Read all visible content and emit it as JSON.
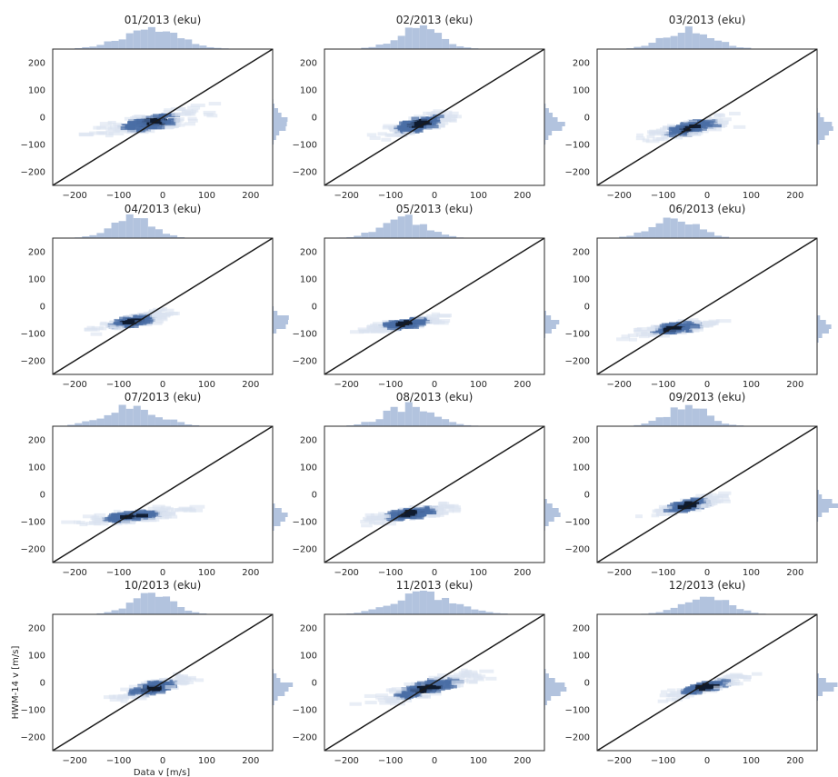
{
  "figure": {
    "xlabel": "Data v [m/s]",
    "ylabel": "HWM-14 v [m/s]"
  },
  "colors": {
    "hist": "#b2c3de",
    "dark": "#0f1a2e",
    "mid": "#4a6da5",
    "light": "#dbe3f0",
    "line": "#1a1a1a"
  },
  "chart_data": [
    {
      "type": "heatmap",
      "title": "01/2013 (eku)",
      "xlim": [
        -250,
        250
      ],
      "ylim": [
        -250,
        250
      ],
      "x_ticks": [
        -200,
        -100,
        0,
        100,
        200
      ],
      "y_ticks": [
        -200,
        -100,
        0,
        100,
        200
      ],
      "reference_line": "y = x",
      "density_center": [
        -30,
        -20
      ],
      "spread_x": 70,
      "spread_y": 30,
      "slope": 0.6
    },
    {
      "type": "heatmap",
      "title": "02/2013 (eku)",
      "xlim": [
        -250,
        250
      ],
      "ylim": [
        -250,
        250
      ],
      "x_ticks": [
        -200,
        -100,
        0,
        100,
        200
      ],
      "y_ticks": [
        -200,
        -100,
        0,
        100,
        200
      ],
      "reference_line": "y = x",
      "density_center": [
        -35,
        -25
      ],
      "spread_x": 55,
      "spread_y": 28,
      "slope": 0.8
    },
    {
      "type": "heatmap",
      "title": "03/2013 (eku)",
      "xlim": [
        -250,
        250
      ],
      "ylim": [
        -250,
        250
      ],
      "x_ticks": [
        -200,
        -100,
        0,
        100,
        200
      ],
      "y_ticks": [
        -200,
        -100,
        0,
        100,
        200
      ],
      "reference_line": "y = x",
      "density_center": [
        -40,
        -40
      ],
      "spread_x": 60,
      "spread_y": 25,
      "slope": 0.6
    },
    {
      "type": "heatmap",
      "title": "04/2013 (eku)",
      "xlim": [
        -250,
        250
      ],
      "ylim": [
        -250,
        250
      ],
      "x_ticks": [
        -200,
        -100,
        0,
        100,
        200
      ],
      "y_ticks": [
        -200,
        -100,
        0,
        100,
        200
      ],
      "reference_line": "y = x",
      "density_center": [
        -70,
        -55
      ],
      "spread_x": 50,
      "spread_y": 20,
      "slope": 0.7
    },
    {
      "type": "heatmap",
      "title": "05/2013 (eku)",
      "xlim": [
        -250,
        250
      ],
      "ylim": [
        -250,
        250
      ],
      "x_ticks": [
        -200,
        -100,
        0,
        100,
        200
      ],
      "y_ticks": [
        -200,
        -100,
        0,
        100,
        200
      ],
      "reference_line": "y = x",
      "density_center": [
        -70,
        -65
      ],
      "spread_x": 55,
      "spread_y": 18,
      "slope": 0.5
    },
    {
      "type": "heatmap",
      "title": "06/2013 (eku)",
      "xlim": [
        -250,
        250
      ],
      "ylim": [
        -250,
        250
      ],
      "x_ticks": [
        -200,
        -100,
        0,
        100,
        200
      ],
      "y_ticks": [
        -200,
        -100,
        0,
        100,
        200
      ],
      "reference_line": "y = x",
      "density_center": [
        -75,
        -80
      ],
      "spread_x": 55,
      "spread_y": 20,
      "slope": 0.5
    },
    {
      "type": "heatmap",
      "title": "07/2013 (eku)",
      "xlim": [
        -250,
        250
      ],
      "ylim": [
        -250,
        250
      ],
      "x_ticks": [
        -200,
        -100,
        0,
        100,
        200
      ],
      "y_ticks": [
        -200,
        -100,
        0,
        100,
        200
      ],
      "reference_line": "y = x",
      "density_center": [
        -70,
        -80
      ],
      "spread_x": 65,
      "spread_y": 20,
      "slope": 0.4
    },
    {
      "type": "heatmap",
      "title": "08/2013 (eku)",
      "xlim": [
        -250,
        250
      ],
      "ylim": [
        -250,
        250
      ],
      "x_ticks": [
        -200,
        -100,
        0,
        100,
        200
      ],
      "y_ticks": [
        -200,
        -100,
        0,
        100,
        200
      ],
      "reference_line": "y = x",
      "density_center": [
        -55,
        -70
      ],
      "spread_x": 60,
      "spread_y": 22,
      "slope": 0.5
    },
    {
      "type": "heatmap",
      "title": "09/2013 (eku)",
      "xlim": [
        -250,
        250
      ],
      "ylim": [
        -250,
        250
      ],
      "x_ticks": [
        -200,
        -100,
        0,
        100,
        200
      ],
      "y_ticks": [
        -200,
        -100,
        0,
        100,
        200
      ],
      "reference_line": "y = x",
      "density_center": [
        -45,
        -40
      ],
      "spread_x": 50,
      "spread_y": 22,
      "slope": 0.8
    },
    {
      "type": "heatmap",
      "title": "10/2013 (eku)",
      "xlim": [
        -250,
        250
      ],
      "ylim": [
        -250,
        250
      ],
      "x_ticks": [
        -200,
        -100,
        0,
        100,
        200
      ],
      "y_ticks": [
        -200,
        -100,
        0,
        100,
        200
      ],
      "reference_line": "y = x",
      "density_center": [
        -25,
        -20
      ],
      "spread_x": 50,
      "spread_y": 25,
      "slope": 0.8
    },
    {
      "type": "heatmap",
      "title": "11/2013 (eku)",
      "xlim": [
        -250,
        250
      ],
      "ylim": [
        -250,
        250
      ],
      "x_ticks": [
        -200,
        -100,
        0,
        100,
        200
      ],
      "y_ticks": [
        -200,
        -100,
        0,
        100,
        200
      ],
      "reference_line": "y = x",
      "density_center": [
        -20,
        -20
      ],
      "spread_x": 75,
      "spread_y": 28,
      "slope": 0.8
    },
    {
      "type": "heatmap",
      "title": "12/2013 (eku)",
      "xlim": [
        -250,
        250
      ],
      "ylim": [
        -250,
        250
      ],
      "x_ticks": [
        -200,
        -100,
        0,
        100,
        200
      ],
      "y_ticks": [
        -200,
        -100,
        0,
        100,
        200
      ],
      "reference_line": "y = x",
      "density_center": [
        -5,
        -15
      ],
      "spread_x": 55,
      "spread_y": 18,
      "slope": 0.8
    }
  ]
}
